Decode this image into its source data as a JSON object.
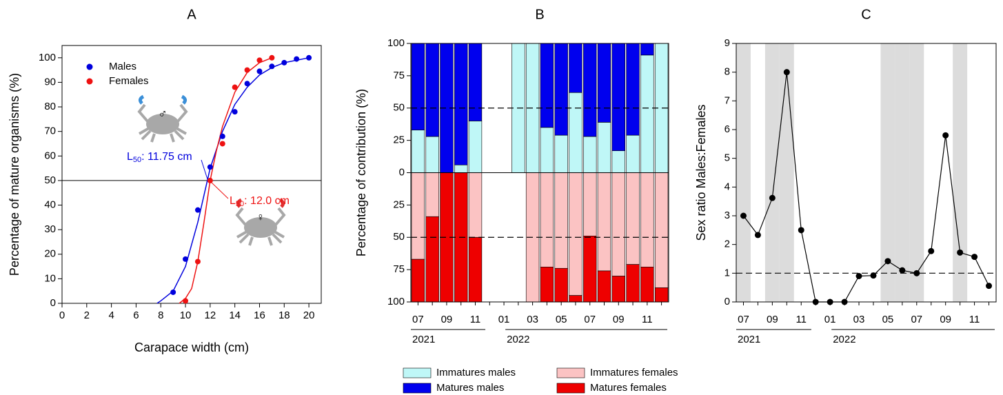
{
  "chart_data": [
    {
      "type": "scatter",
      "title": "A",
      "xlabel": "Carapace width (cm)",
      "ylabel": "Percentage of mature organisms (%)",
      "xlim": [
        0,
        21
      ],
      "ylim": [
        0,
        105
      ],
      "xticks": [
        0,
        2,
        4,
        6,
        8,
        10,
        12,
        14,
        16,
        18,
        20
      ],
      "yticks": [
        0,
        10,
        20,
        30,
        40,
        50,
        60,
        70,
        80,
        90,
        100
      ],
      "reference_line": 50,
      "legend": "upper left",
      "series": [
        {
          "name": "Males",
          "color": "#0000dd",
          "x": [
            9,
            10,
            11,
            12,
            13,
            14,
            15,
            16,
            17,
            18,
            19,
            20
          ],
          "values": [
            4.5,
            18,
            38,
            55.5,
            68,
            78,
            89.5,
            94.5,
            96.5,
            98,
            99.5,
            100
          ],
          "fit_x": [
            7.7,
            8,
            9,
            10,
            11,
            12,
            13,
            14,
            15,
            16,
            17,
            18,
            19,
            20
          ],
          "fit_values": [
            0,
            1,
            5,
            15,
            33,
            55,
            70,
            81,
            88,
            93,
            96,
            98,
            99,
            100
          ]
        },
        {
          "name": "Females",
          "color": "#ee1111",
          "x": [
            10,
            11,
            12,
            13,
            14,
            15,
            16,
            17
          ],
          "values": [
            1,
            17,
            50,
            65,
            88,
            95,
            99,
            100
          ],
          "fit_x": [
            9.5,
            10,
            10.5,
            11,
            11.5,
            12,
            12.5,
            13,
            14,
            15,
            16,
            17
          ],
          "fit_values": [
            0,
            2,
            6,
            17,
            33,
            50,
            62,
            72,
            86,
            94,
            98,
            100
          ]
        }
      ],
      "annotations": [
        {
          "prefix": "L",
          "sub": "50",
          "text": ": 11.75 cm"
        },
        {
          "prefix": "L",
          "sub": "50",
          "text": ": 12.0 cm"
        }
      ],
      "icons": [
        "♂",
        "♀"
      ]
    },
    {
      "type": "bar",
      "title": "B",
      "ylabel": "Percentage of contribution (%)",
      "categories": [
        "07",
        null,
        "09",
        null,
        "11",
        null,
        "01",
        null,
        "03",
        null,
        "05",
        null,
        "07",
        null,
        "09",
        null,
        "11",
        null
      ],
      "year_groups": [
        {
          "label": "2021",
          "count": 6
        },
        {
          "label": "2022",
          "count": 12
        }
      ],
      "ylim": [
        -100,
        100
      ],
      "yticks": [
        {
          "value": -100,
          "label": "100"
        },
        {
          "value": -75,
          "label": "75"
        },
        {
          "value": -50,
          "label": "50"
        },
        {
          "value": -25,
          "label": "25"
        },
        0,
        25,
        50,
        75,
        100
      ],
      "reference_lines": [
        50,
        -50
      ],
      "series": [
        {
          "name": "Immatures males",
          "color": "#bff7f7",
          "side": "above",
          "values": [
            33,
            28,
            0,
            6,
            40,
            null,
            null,
            100,
            100,
            35,
            29,
            62,
            28,
            39,
            17,
            29,
            91,
            100
          ]
        },
        {
          "name": "Matures males",
          "color": "#0000ee",
          "side": "above",
          "values": [
            67,
            72,
            100,
            94,
            60,
            null,
            null,
            0,
            0,
            65,
            71,
            38,
            72,
            61,
            83,
            71,
            9,
            0
          ]
        },
        {
          "name": "Immatures females",
          "color": "#fbc3c3",
          "side": "below",
          "values": [
            67,
            34,
            0,
            0,
            50,
            null,
            null,
            null,
            100,
            73,
            74,
            95,
            49,
            76,
            80,
            71,
            73,
            89
          ]
        },
        {
          "name": "Matures females",
          "color": "#ee0000",
          "side": "below",
          "values": [
            33,
            66,
            100,
            100,
            50,
            null,
            null,
            null,
            0,
            27,
            26,
            5,
            51,
            24,
            20,
            29,
            27,
            11
          ]
        }
      ]
    },
    {
      "type": "line",
      "title": "C",
      "ylabel": "Sex ratio Males:Females",
      "categories": [
        "07",
        null,
        "09",
        null,
        "11",
        null,
        "01",
        null,
        "03",
        null,
        "05",
        null,
        "07",
        null,
        "09",
        null,
        "11",
        null
      ],
      "year_groups": [
        {
          "label": "2021",
          "count": 6
        },
        {
          "label": "2022",
          "count": 12
        }
      ],
      "values": [
        3.0,
        2.33,
        3.62,
        8.0,
        2.5,
        0,
        0,
        0,
        0.9,
        0.92,
        1.42,
        1.1,
        1.0,
        1.77,
        5.8,
        1.72,
        1.57,
        0.56
      ],
      "color": "#000000",
      "ylim": [
        0,
        9
      ],
      "yticks": [
        0,
        1,
        2,
        3,
        4,
        5,
        6,
        7,
        8,
        9
      ],
      "reference_line": 1,
      "shaded": [
        true,
        false,
        true,
        true,
        false,
        false,
        false,
        false,
        false,
        false,
        true,
        true,
        true,
        false,
        false,
        true,
        false,
        false
      ]
    }
  ]
}
